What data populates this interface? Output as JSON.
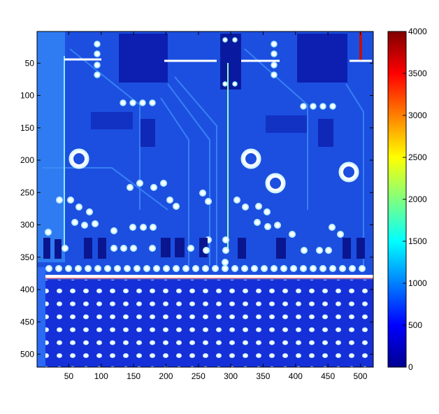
{
  "chart_data": {
    "type": "heatmap",
    "title": "",
    "xlabel": "",
    "ylabel": "",
    "xlim": [
      1,
      520
    ],
    "ylim": [
      520,
      1
    ],
    "xticks": [
      50,
      100,
      150,
      200,
      250,
      300,
      350,
      400,
      450,
      500
    ],
    "yticks": [
      50,
      100,
      150,
      200,
      250,
      300,
      350,
      400,
      450,
      500
    ],
    "colorbar": {
      "colormap": "jet",
      "clim": [
        0,
        4000
      ],
      "ticks": [
        0,
        500,
        1000,
        1500,
        2000,
        2500,
        3000,
        3500,
        4000
      ]
    },
    "colors": {
      "background_blue": "#1c4fe0",
      "trace_blue": "#2a6af5",
      "grid_field_blue": "#1530d8",
      "hot_white": "#ffffff",
      "bright_cyan": "#7fe8ff"
    }
  }
}
